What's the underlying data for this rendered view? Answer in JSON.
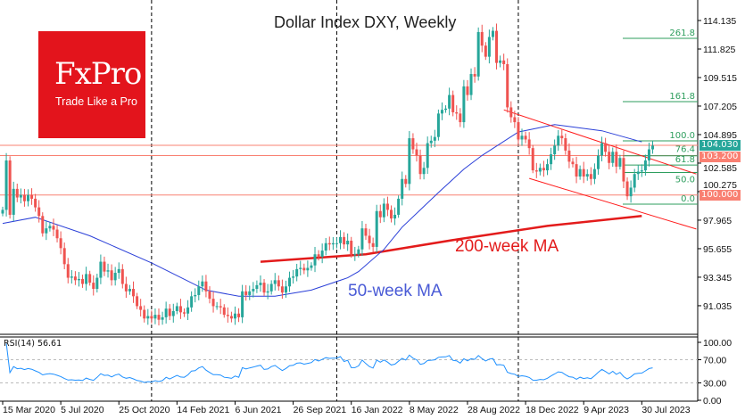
{
  "chart_data": {
    "type": "candlestick",
    "title": "Dollar Index DXY, Weekly",
    "symbol_timeframe": "Weekly",
    "y_ticks": [
      "114.135",
      "111.825",
      "109.515",
      "107.205",
      "104.895",
      "102.585",
      "100.275",
      "97.965",
      "95.655",
      "93.345",
      "91.035"
    ],
    "ylim": [
      89.0,
      115.5
    ],
    "x_ticks": [
      "15 Mar 2020",
      "5 Jul 2020",
      "25 Oct 2020",
      "14 Feb 2021",
      "6 Jun 2021",
      "26 Sep 2021",
      "16 Jan 2022",
      "8 May 2022",
      "28 Aug 2022",
      "18 Dec 2022",
      "9 Apr 2023",
      "30 Jul 2023"
    ],
    "x_tick_week_interval": 16,
    "separator_weeks": [
      41,
      92,
      142
    ],
    "close": [
      98.8,
      102.8,
      98.4,
      100.5,
      99.8,
      100.0,
      99.5,
      100.0,
      99.7,
      99.0,
      98.3,
      96.9,
      97.3,
      97.5,
      97.2,
      96.5,
      95.7,
      94.4,
      93.3,
      93.4,
      93.1,
      93.2,
      92.8,
      93.6,
      92.9,
      92.4,
      93.3,
      94.6,
      93.8,
      93.9,
      93.1,
      93.7,
      94.0,
      92.8,
      92.2,
      92.4,
      91.8,
      91.0,
      90.7,
      90.0,
      90.2,
      90.0,
      90.3,
      89.9,
      90.1,
      90.8,
      90.2,
      90.6,
      91.0,
      90.5,
      90.4,
      90.9,
      91.8,
      91.9,
      92.6,
      93.0,
      92.2,
      91.6,
      91.0,
      91.0,
      90.9,
      90.3,
      90.2,
      90.0,
      90.4,
      90.1,
      92.2,
      91.9,
      92.2,
      92.4,
      92.7,
      92.9,
      92.1,
      92.2,
      92.8,
      93.1,
      92.6,
      92.1,
      92.6,
      93.3,
      93.4,
      94.0,
      94.1,
      93.9,
      94.1,
      94.3,
      95.2,
      95.0,
      95.5,
      96.1,
      96.0,
      96.1,
      96.1,
      96.6,
      96.0,
      96.3,
      95.2,
      95.2,
      95.6,
      97.3,
      96.7,
      96.1,
      95.8,
      98.7,
      98.2,
      99.3,
      98.8,
      98.1,
      98.4,
      99.7,
      101.3,
      100.9,
      104.6,
      103.7,
      103.2,
      101.7,
      102.2,
      104.2,
      104.4,
      104.7,
      106.6,
      106.9,
      107.0,
      108.1,
      106.7,
      106.6,
      105.9,
      108.8,
      108.1,
      109.8,
      109.6,
      113.2,
      112.1,
      111.2,
      112.8,
      113.3,
      110.7,
      110.9,
      110.6,
      107.1,
      106.3,
      105.9,
      104.5,
      104.8,
      104.5,
      103.8,
      102.0,
      101.9,
      102.2,
      102.0,
      102.5,
      103.3,
      104.0,
      104.8,
      104.6,
      103.6,
      102.7,
      102.5,
      101.5,
      102.1,
      101.5,
      101.7,
      101.3,
      102.1,
      103.2,
      104.2,
      103.5,
      102.6,
      103.5,
      102.3,
      103.0,
      101.1,
      99.9,
      100.6,
      101.7,
      101.9,
      102.0,
      102.8,
      103.7,
      104.0
    ],
    "ma50": {
      "label": "50-week MA",
      "points": [
        [
          0,
          97.7
        ],
        [
          9,
          98.2
        ],
        [
          24,
          96.7
        ],
        [
          41,
          94.5
        ],
        [
          56,
          92.3
        ],
        [
          65,
          91.8
        ],
        [
          75,
          91.8
        ],
        [
          85,
          92.3
        ],
        [
          95,
          93.3
        ],
        [
          98,
          93.8
        ],
        [
          105,
          95.6
        ],
        [
          110,
          97.4
        ],
        [
          120,
          100.2
        ],
        [
          127,
          102.1
        ],
        [
          132,
          103.2
        ],
        [
          142,
          105.1
        ],
        [
          152,
          105.7
        ],
        [
          165,
          105.2
        ],
        [
          176,
          104.3
        ]
      ],
      "color": "#2a3fd8"
    },
    "ma200": {
      "label": "200-week MA",
      "points": [
        [
          71,
          94.6
        ],
        [
          100,
          95.2
        ],
        [
          125,
          96.4
        ],
        [
          150,
          97.5
        ],
        [
          176,
          98.3
        ]
      ],
      "color": "#e31b1b"
    },
    "channel": {
      "upper": [
        [
          138,
          106.9
        ],
        [
          191,
          101.7
        ]
      ],
      "lower": [
        [
          145,
          101.35
        ],
        [
          191,
          97.25
        ]
      ],
      "color": "#ff1a1a"
    },
    "fibonacci": {
      "low": 99.26,
      "high": 104.39,
      "levels": [
        "0.0",
        "50.0",
        "61.8",
        "76.4",
        "100.0",
        "161.8",
        "261.8"
      ],
      "color": "#2e9e5e"
    },
    "hlines": [
      {
        "value": 104.03,
        "label": "104.030",
        "color": "#26a69a"
      },
      {
        "value": 103.2,
        "label": "103.200",
        "color": "#f98072"
      },
      {
        "value": 100.0,
        "label": "100.000",
        "color": "#f98072"
      }
    ],
    "colors": {
      "up": "#26a69a",
      "down": "#ef5350",
      "rsi": "#1e90ff"
    },
    "rsi": {
      "label": "RSI(14) 56.61",
      "period": 14,
      "ticks": [
        "100.00",
        "70.00",
        "30.00",
        "0.00"
      ],
      "levels": [
        70,
        30
      ]
    }
  },
  "logo": {
    "brand": "FxPro",
    "tagline": "Trade Like a Pro"
  }
}
